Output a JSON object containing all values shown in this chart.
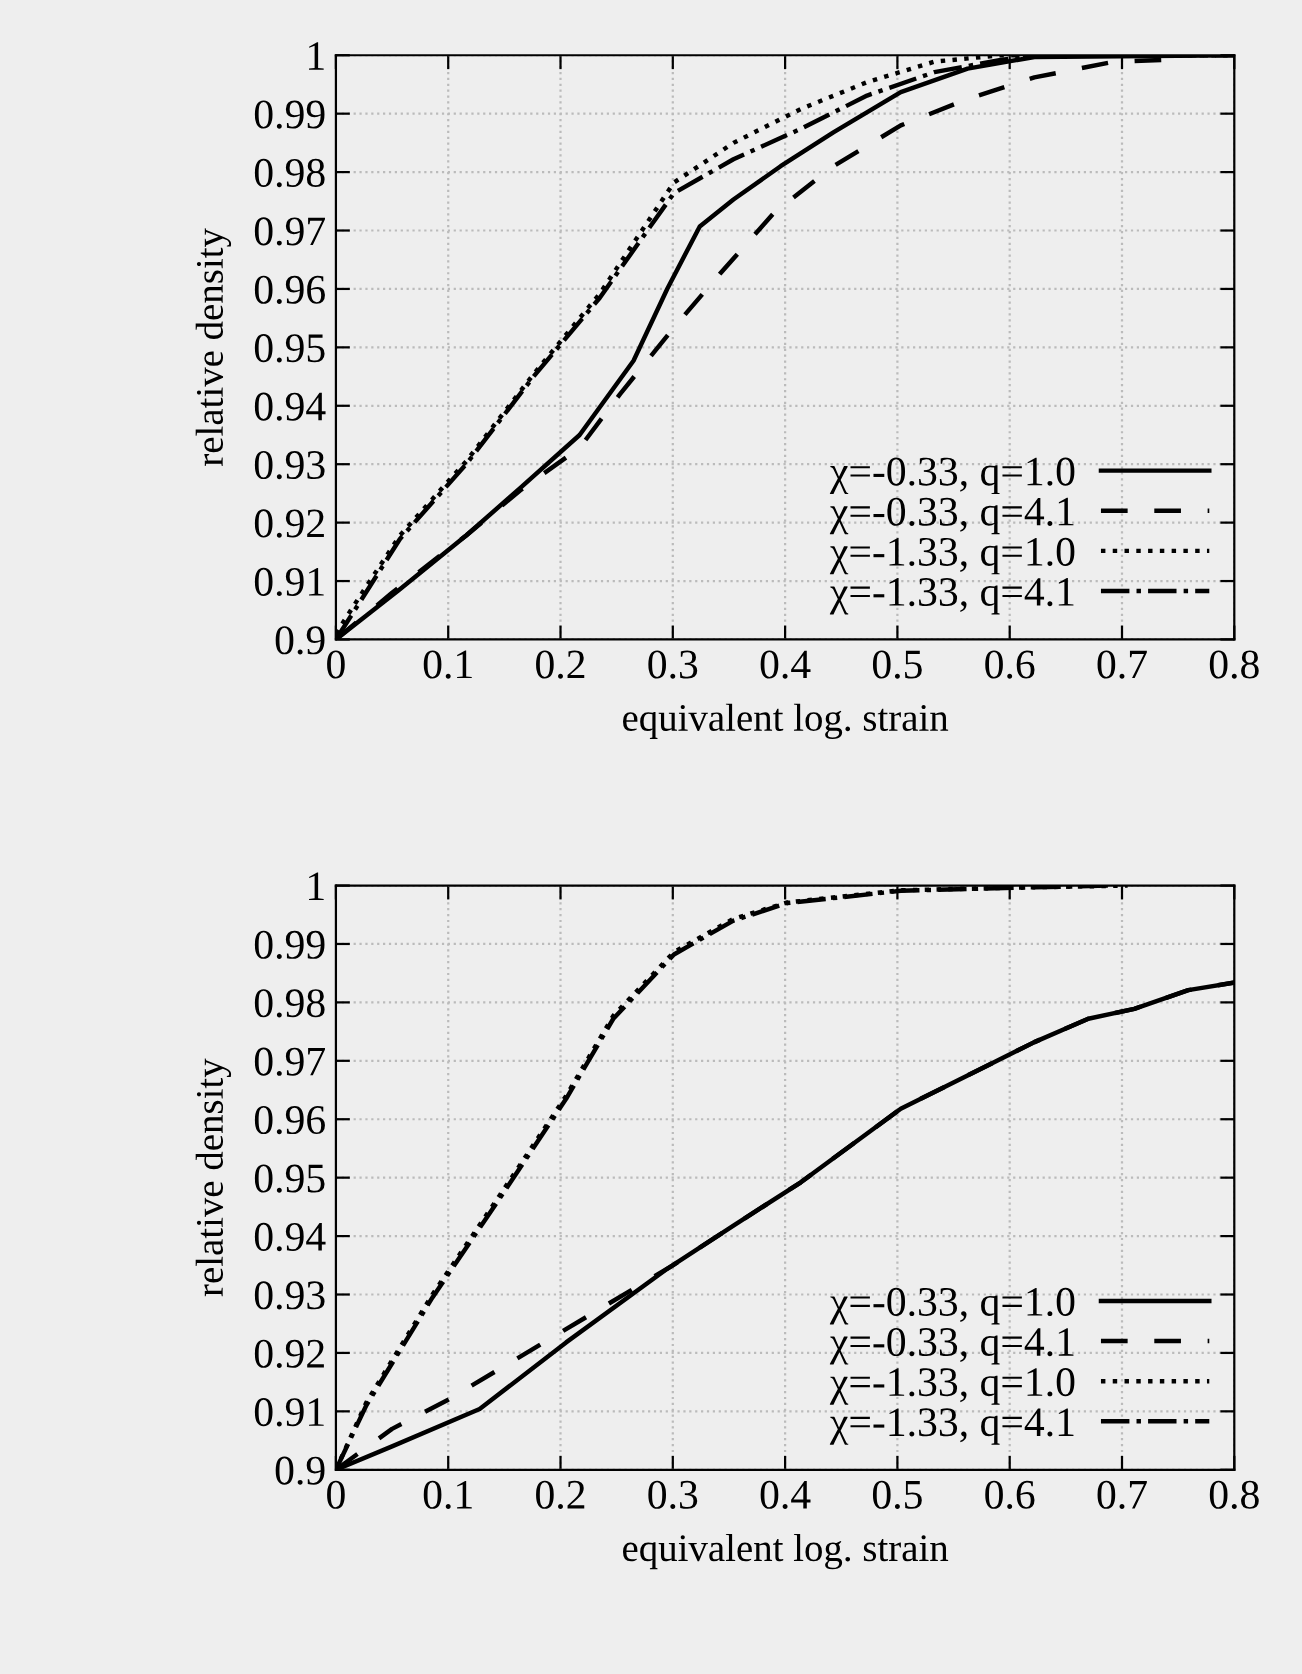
{
  "chart_data": [
    {
      "type": "line",
      "xlabel": "equivalent log. strain",
      "ylabel": "relative density",
      "xlim": [
        0,
        0.8
      ],
      "ylim": [
        0.9,
        1
      ],
      "xticks": [
        0,
        0.1,
        0.2,
        0.3,
        0.4,
        0.5,
        0.6,
        0.7,
        0.8
      ],
      "yticks": [
        0.9,
        0.91,
        0.92,
        0.93,
        0.94,
        0.95,
        0.96,
        0.97,
        0.98,
        0.99,
        {
          "value": 1,
          "label": "1"
        }
      ],
      "grid": true,
      "legend": "bottom right",
      "series": [
        {
          "name": "χ=-0.33, q=1.0",
          "color": "#000000",
          "line_style": "solid",
          "x": [
            0,
            0.057,
            0.116,
            0.164,
            0.217,
            0.265,
            0.295,
            0.324,
            0.354,
            0.396,
            0.443,
            0.503,
            0.5625,
            0.622,
            0.8
          ],
          "values": [
            0.9,
            0.9086,
            0.9178,
            0.9259,
            0.935,
            0.9477,
            0.96,
            0.9707,
            0.9753,
            0.981,
            0.9868,
            0.9937,
            0.9977,
            0.9997,
            1.0
          ]
        },
        {
          "name": "χ=-0.33, q=4.1",
          "color": "#000000",
          "line_style": "dashed",
          "x": [
            0,
            0.05,
            0.116,
            0.164,
            0.217,
            0.253,
            0.301,
            0.342,
            0.39,
            0.443,
            0.503,
            0.5625,
            0.622,
            0.693,
            0.735
          ],
          "values": [
            0.9,
            0.908,
            0.9178,
            0.9255,
            0.9328,
            0.942,
            0.9534,
            0.9626,
            0.973,
            0.981,
            0.988,
            0.9925,
            0.9962,
            0.9989,
            0.9992
          ]
        },
        {
          "name": "χ=-1.33, q=1.0",
          "color": "#000000",
          "line_style": "dotted",
          "x": [
            0,
            0.02,
            0.057,
            0.116,
            0.176,
            0.235,
            0.301,
            0.354,
            0.414,
            0.473,
            0.533,
            0.592,
            0.8
          ],
          "values": [
            0.901,
            0.907,
            0.9178,
            0.9305,
            0.9454,
            0.9592,
            0.9782,
            0.985,
            0.9908,
            0.9954,
            0.9989,
            1.0,
            1.0
          ]
        },
        {
          "name": "χ=-1.33, q=4.1",
          "color": "#000000",
          "line_style": "dashdot",
          "x": [
            0,
            0.02,
            0.057,
            0.116,
            0.176,
            0.235,
            0.301,
            0.354,
            0.414,
            0.473,
            0.533,
            0.592,
            0.622,
            0.8
          ],
          "values": [
            0.9,
            0.906,
            0.9172,
            0.93,
            0.945,
            0.9585,
            0.9764,
            0.9822,
            0.9874,
            0.9931,
            0.9971,
            0.9992,
            1.0,
            1.0
          ]
        }
      ]
    },
    {
      "type": "line",
      "xlabel": "equivalent log. strain",
      "ylabel": "relative density",
      "xlim": [
        0,
        0.8
      ],
      "ylim": [
        0.9,
        1
      ],
      "xticks": [
        0,
        0.1,
        0.2,
        0.3,
        0.4,
        0.5,
        0.6,
        0.7,
        0.8
      ],
      "yticks": [
        0.9,
        0.91,
        0.92,
        0.93,
        0.94,
        0.95,
        0.96,
        0.97,
        0.98,
        0.99,
        {
          "value": 1,
          "label": "1"
        }
      ],
      "grid": true,
      "legend": "bottom right",
      "series": [
        {
          "name": "χ=-0.33, q=1.0",
          "color": "#000000",
          "line_style": "solid",
          "x": [
            0,
            0.05,
            0.128,
            0.205,
            0.295,
            0.354,
            0.414,
            0.503,
            0.5625,
            0.622,
            0.67,
            0.711,
            0.759,
            0.8
          ],
          "values": [
            0.9,
            0.904,
            0.9104,
            0.9218,
            0.9344,
            0.9418,
            0.9492,
            0.9618,
            0.9675,
            0.9732,
            0.9772,
            0.9789,
            0.9821,
            0.9834
          ]
        },
        {
          "name": "χ=-0.33, q=4.1",
          "color": "#000000",
          "line_style": "dashed",
          "x": [
            0,
            0.05,
            0.1,
            0.2,
            0.3,
            0.354,
            0.414,
            0.503,
            0.5625,
            0.622,
            0.67,
            0.711,
            0.759,
            0.8
          ],
          "values": [
            0.9,
            0.907,
            0.912,
            0.9235,
            0.935,
            0.9418,
            0.9492,
            0.9618,
            0.9675,
            0.9732,
            0.9772,
            0.9789,
            0.9821,
            0.9834
          ]
        },
        {
          "name": "χ=-1.33, q=1.0",
          "color": "#000000",
          "line_style": "dotted",
          "x": [
            0,
            0.027,
            0.086,
            0.146,
            0.205,
            0.247,
            0.301,
            0.354,
            0.402,
            0.503,
            0.622,
            0.705
          ],
          "values": [
            0.9,
            0.9115,
            0.93,
            0.947,
            0.964,
            0.9777,
            0.9886,
            0.9943,
            0.9971,
            0.9992,
            0.9997,
            1.0
          ]
        },
        {
          "name": "χ=-1.33, q=4.1",
          "color": "#000000",
          "line_style": "dashdot",
          "x": [
            0,
            0.027,
            0.086,
            0.146,
            0.205,
            0.247,
            0.301,
            0.354,
            0.402,
            0.503,
            0.622,
            0.69
          ],
          "values": [
            0.9,
            0.911,
            0.9295,
            0.9465,
            0.9635,
            0.9772,
            0.9882,
            0.994,
            0.997,
            0.9991,
            0.9997,
            1.0
          ]
        }
      ]
    }
  ]
}
